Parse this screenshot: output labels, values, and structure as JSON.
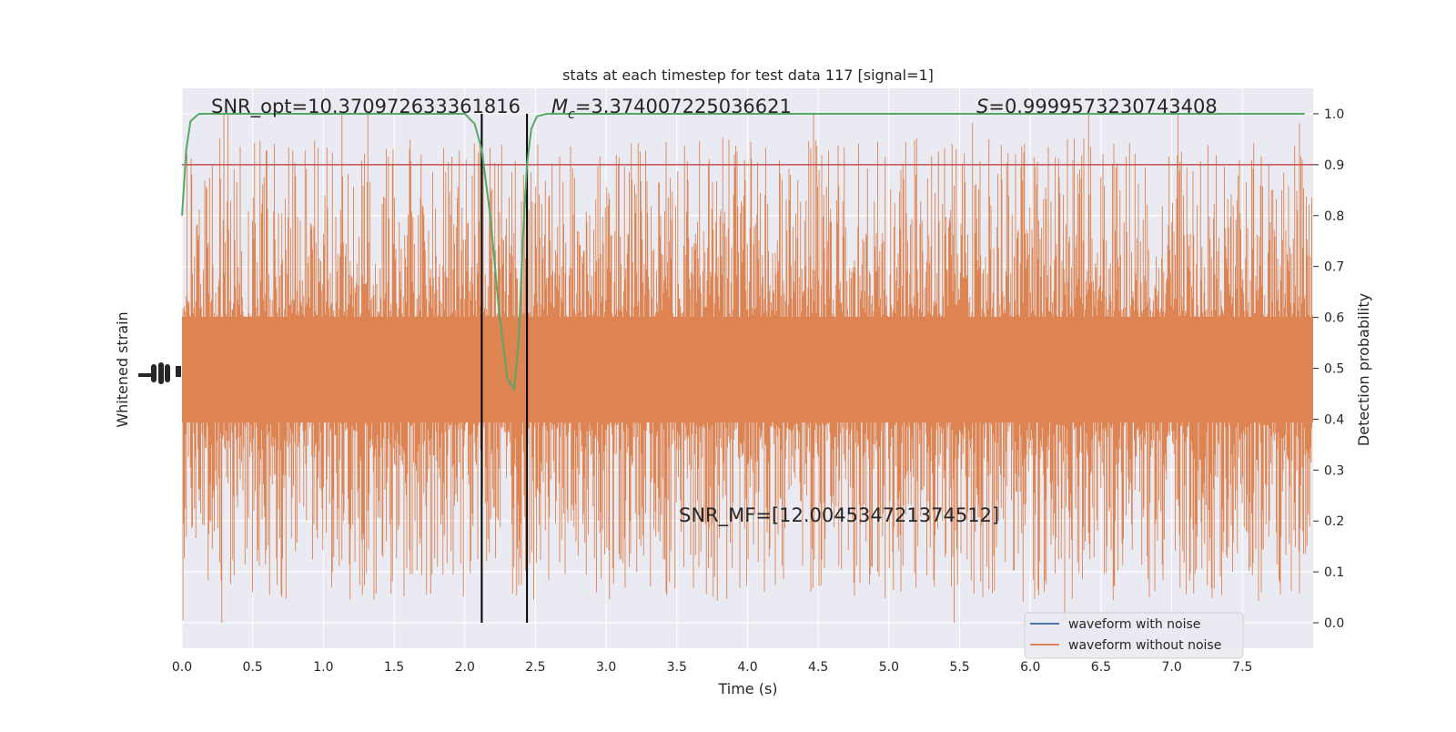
{
  "chart_data": {
    "type": "line",
    "title": "stats at each timestep for test data 117 [signal=1]",
    "xlabel": "Time (s)",
    "ylabel_left": "Whitened strain",
    "ylabel_right": "Detection probability",
    "xlim": [
      0.0,
      8.0
    ],
    "ylim_right": [
      -0.05,
      1.05
    ],
    "x_ticks": [
      "0.0",
      "0.5",
      "1.0",
      "1.5",
      "2.0",
      "2.5",
      "3.0",
      "3.5",
      "4.0",
      "4.5",
      "5.0",
      "5.5",
      "6.0",
      "6.5",
      "7.0",
      "7.5"
    ],
    "y_ticks_right": [
      "0.0",
      "0.1",
      "0.2",
      "0.3",
      "0.4",
      "0.5",
      "0.6",
      "0.7",
      "0.8",
      "0.9",
      "1.0"
    ],
    "grid": true,
    "legend_position": "bottom-right",
    "annotations": {
      "snr_opt": "SNR_opt=10.370972633361816",
      "mc_symbol": "M",
      "mc_subscript": "c",
      "mc_value": "=3.374007225036621",
      "s_symbol": "S",
      "s_value": "=0.9999573230743408",
      "snr_mf": "SNR_MF=[12.004534721374512]"
    },
    "series": [
      {
        "name": "waveform with noise",
        "color": "#4c72b0"
      },
      {
        "name": "waveform without noise",
        "color": "#dd8452"
      },
      {
        "color": "#55a868",
        "x": [
          0.0,
          0.03,
          0.06,
          0.12,
          0.5,
          1.0,
          1.5,
          1.9,
          2.0,
          2.07,
          2.12,
          2.18,
          2.24,
          2.3,
          2.35,
          2.38,
          2.41,
          2.44,
          2.47,
          2.51,
          2.58,
          3.0,
          4.0,
          5.0,
          6.0,
          7.0,
          7.94
        ],
        "y": [
          0.8,
          0.93,
          0.985,
          1.0,
          1.0,
          1.0,
          1.0,
          1.0,
          1.0,
          0.98,
          0.93,
          0.8,
          0.62,
          0.48,
          0.46,
          0.55,
          0.75,
          0.9,
          0.97,
          0.995,
          1.0,
          1.0,
          1.0,
          1.0,
          1.0,
          1.0,
          1.0
        ]
      }
    ],
    "threshold": {
      "value": 0.9,
      "color": "#c44e52"
    },
    "vertical_lines": [
      2.12,
      2.44
    ],
    "colors": {
      "plot_bg": "#eaeaf2",
      "grid": "#ffffff"
    }
  }
}
